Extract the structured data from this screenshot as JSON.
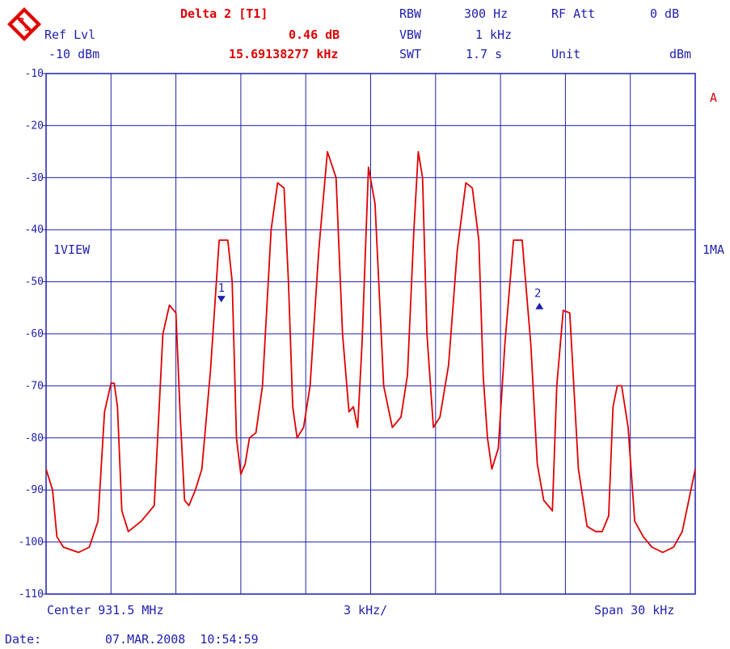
{
  "header": {
    "marker_title": "Delta 2 [T1]",
    "marker_level": "0.46 dB",
    "marker_freq": "15.69138277 kHz",
    "ref_lvl_label": "Ref Lvl",
    "ref_lvl_value": "-10 dBm",
    "rbw_label": "RBW",
    "rbw_value": "300 Hz",
    "vbw_label": "VBW",
    "vbw_value": "1 kHz",
    "swt_label": "SWT",
    "swt_value": "1.7 s",
    "rf_att_label": "RF Att",
    "rf_att_value": "0 dB",
    "unit_label": "Unit",
    "unit_value": "dBm"
  },
  "side": {
    "trace_a": "A",
    "view_label": "1VIEW",
    "ma_label": "1MA"
  },
  "footer": {
    "center": "Center 931.5 MHz",
    "div": "3 kHz/",
    "span": "Span 30 kHz",
    "date_label": "Date:",
    "date_value": "07.MAR.2008  10:54:59"
  },
  "colors": {
    "trace": "#e00000",
    "grid": "#1f1fb0",
    "text": "#1f1fb0",
    "marker": "#1f1fb0"
  },
  "chart_data": {
    "type": "line",
    "xlabel": "",
    "ylabel": "",
    "xlim": [
      -15,
      15
    ],
    "ylim": [
      -110,
      -10
    ],
    "ytick_labels": [
      "-10",
      "-20",
      "-30",
      "-40",
      "-50",
      "-60",
      "-70",
      "-80",
      "-90",
      "-100",
      "-110"
    ],
    "y_ticks": [
      -10,
      -20,
      -30,
      -40,
      -50,
      -60,
      -70,
      -80,
      -90,
      -100,
      -110
    ],
    "grid": true,
    "series": [
      {
        "x": [
          -15,
          -14.7,
          -14.5,
          -14.2,
          -13.5,
          -13.0,
          -12.6,
          -12.3,
          -12.0,
          -11.85,
          -11.7,
          -11.5,
          -11.2,
          -10.9,
          -10.6,
          -10.0,
          -9.6,
          -9.3,
          -9.0,
          -8.8,
          -8.6,
          -8.4,
          -8.1,
          -7.8,
          -7.4,
          -7.0,
          -6.6,
          -6.4,
          -6.2,
          -6.0,
          -5.8,
          -5.6,
          -5.3,
          -5.0,
          -4.6,
          -4.3,
          -4.0,
          -3.8,
          -3.6,
          -3.4,
          -3.1,
          -2.8,
          -2.4,
          -2.0,
          -1.6,
          -1.3,
          -1.0,
          -0.8,
          -0.6,
          -0.4,
          -0.1,
          0.2,
          0.6,
          1.0,
          1.4,
          1.7,
          2.0,
          2.2,
          2.4,
          2.6,
          2.9,
          3.2,
          3.6,
          4.0,
          4.4,
          4.7,
          5.0,
          5.2,
          5.4,
          5.6,
          5.9,
          6.2,
          6.6,
          7.0,
          7.4,
          7.7,
          8.0,
          8.2,
          8.4,
          8.6,
          8.9,
          9.2,
          9.6,
          10.0,
          10.4,
          10.7,
          11.0,
          11.2,
          11.4,
          11.6,
          11.9,
          12.2,
          12.6,
          13.0,
          13.5,
          14.0,
          14.4,
          14.7,
          15.0
        ],
        "y": [
          -86,
          -90,
          -99,
          -101,
          -102,
          -101,
          -96,
          -75,
          -69.5,
          -69.5,
          -74,
          -94,
          -98,
          -97,
          -96,
          -93,
          -60,
          -54.5,
          -56,
          -76,
          -92,
          -93,
          -90,
          -86,
          -67,
          -42,
          -42,
          -50,
          -80,
          -87,
          -85,
          -80,
          -79,
          -70,
          -40,
          -31,
          -32,
          -50,
          -74,
          -80,
          -78,
          -70,
          -44,
          -25,
          -30,
          -60,
          -75,
          -74,
          -78,
          -62,
          -28,
          -35,
          -70,
          -78,
          -76,
          -68,
          -40,
          -25,
          -30,
          -60,
          -78,
          -76,
          -66,
          -44,
          -31,
          -32,
          -42,
          -68,
          -80,
          -86,
          -82,
          -62,
          -42,
          -42,
          -62,
          -85,
          -92,
          -93,
          -94,
          -70,
          -55.5,
          -56,
          -86,
          -97,
          -98,
          -98,
          -95,
          -74,
          -70,
          -70,
          -78,
          -96,
          -99,
          -101,
          -102,
          -101,
          -98,
          -92,
          -86
        ]
      }
    ],
    "markers": [
      {
        "label": "1",
        "x": -6.9,
        "y": -53.5
      },
      {
        "label": "2",
        "x": 7.8,
        "y": -54.5
      }
    ]
  }
}
